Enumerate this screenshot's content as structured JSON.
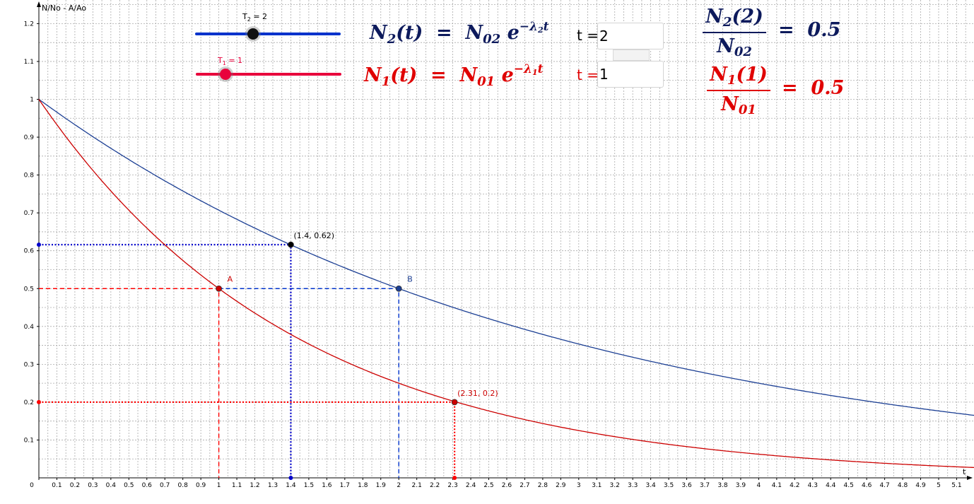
{
  "colors": {
    "blue": "#1c3f94",
    "red": "#cc0000",
    "blue_dot": "#0000cc",
    "red_dash": "#ff0000",
    "slider_blue": "#0033cc",
    "slider_red": "#e8003c",
    "formula_blue": "#0d1a5c",
    "formula_red": "#e00000",
    "grid": "#aaaaaa"
  },
  "chart_data": {
    "type": "line",
    "ylabel": "N/No - A/Ao",
    "xlabel": "t",
    "xlim": [
      0,
      5.25
    ],
    "ylim": [
      0,
      1.25
    ],
    "grid": true,
    "x_ticks": [
      "0",
      "0.1",
      "0.2",
      "0.3",
      "0.4",
      "0.5",
      "0.6",
      "0.7",
      "0.8",
      "0.9",
      "1",
      "1.1",
      "1.2",
      "1.3",
      "1.4",
      "1.5",
      "1.6",
      "1.7",
      "1.8",
      "1.9",
      "2",
      "2.1",
      "2.2",
      "2.3",
      "2.4",
      "2.5",
      "2.6",
      "2.7",
      "2.8",
      "2.9",
      "3",
      "3.1",
      "3.2",
      "3.3",
      "3.4",
      "3.5",
      "3.6",
      "3.7",
      "3.8",
      "3.9",
      "4",
      "4.1",
      "4.2",
      "4.3",
      "4.4",
      "4.5",
      "4.6",
      "4.7",
      "4.8",
      "4.9",
      "5",
      "5.1"
    ],
    "y_ticks": [
      "0.1",
      "0.2",
      "0.3",
      "0.4",
      "0.5",
      "0.6",
      "0.7",
      "0.8",
      "0.9",
      "1",
      "1.1",
      "1.2"
    ],
    "series": [
      {
        "half_life": 2,
        "color": "#1c3f94",
        "formula": "N(t) = exp(-t ln2 / 2)"
      },
      {
        "half_life": 1,
        "color": "#cc0000",
        "formula": "N(t) = exp(-t ln2 / 1)"
      }
    ],
    "points": [
      {
        "label": "A",
        "x": 1,
        "y": 0.5,
        "color": "#cc0000"
      },
      {
        "label": "B",
        "x": 2,
        "y": 0.5,
        "color": "#1c3f94"
      },
      {
        "label": "(1.4, 0.62)",
        "x": 1.4,
        "y": 0.616,
        "color": "#000000"
      },
      {
        "label": "(2.31, 0.2)",
        "x": 2.31,
        "y": 0.2,
        "color": "#cc0000"
      }
    ],
    "guides": [
      {
        "kind": "dashed",
        "color": "#ff0000",
        "from": [
          0,
          0.5
        ],
        "corner": [
          1,
          0.5
        ],
        "to": [
          1,
          0
        ]
      },
      {
        "kind": "dashed",
        "color": "#0033cc",
        "from": [
          1,
          0.5
        ],
        "corner": [
          2,
          0.5
        ],
        "to": [
          2,
          0
        ]
      },
      {
        "kind": "dotted",
        "color": "#0000cc",
        "from": [
          0,
          0.616
        ],
        "corner": [
          1.4,
          0.616
        ],
        "to": [
          1.4,
          0
        ]
      },
      {
        "kind": "dotted",
        "color": "#ff0000",
        "from": [
          0,
          0.2
        ],
        "corner": [
          2.31,
          0.2
        ],
        "to": [
          2.31,
          0
        ]
      }
    ]
  },
  "sliders": {
    "t2": {
      "label_main": "T",
      "label_sub": "2",
      "label_rest": " = 2",
      "value": 2,
      "min": 0,
      "max": 5
    },
    "t1": {
      "label_main": "T",
      "label_sub": "1",
      "label_rest": " = 1",
      "value": 1,
      "min": 0,
      "max": 5
    }
  },
  "formulas": {
    "n2": {
      "lhs": "N",
      "lhs_sub": "2",
      "mid": "(t)  =  N",
      "mid_sub": "02",
      "tail": " e",
      "exp": "−λ",
      "exp_sub": "2",
      "exp_tail": "t"
    },
    "n1": {
      "lhs": "N",
      "lhs_sub": "1",
      "mid": "(t)  =  N",
      "mid_sub": "01",
      "tail": " e",
      "exp": "−λ",
      "exp_sub": "1",
      "exp_tail": "t"
    }
  },
  "inputs": {
    "t2": {
      "label": "t =",
      "value": "2"
    },
    "t1": {
      "label": "t =",
      "value": "1"
    }
  },
  "ratios": {
    "r2": {
      "num": "N",
      "num_sub": "2",
      "num_tail": "(2)",
      "den": "N",
      "den_sub": "02",
      "eq": "=  0.5"
    },
    "r1": {
      "num": "N",
      "num_sub": "1",
      "num_tail": "(1)",
      "den": "N",
      "den_sub": "01",
      "eq": "=  0.5"
    }
  }
}
